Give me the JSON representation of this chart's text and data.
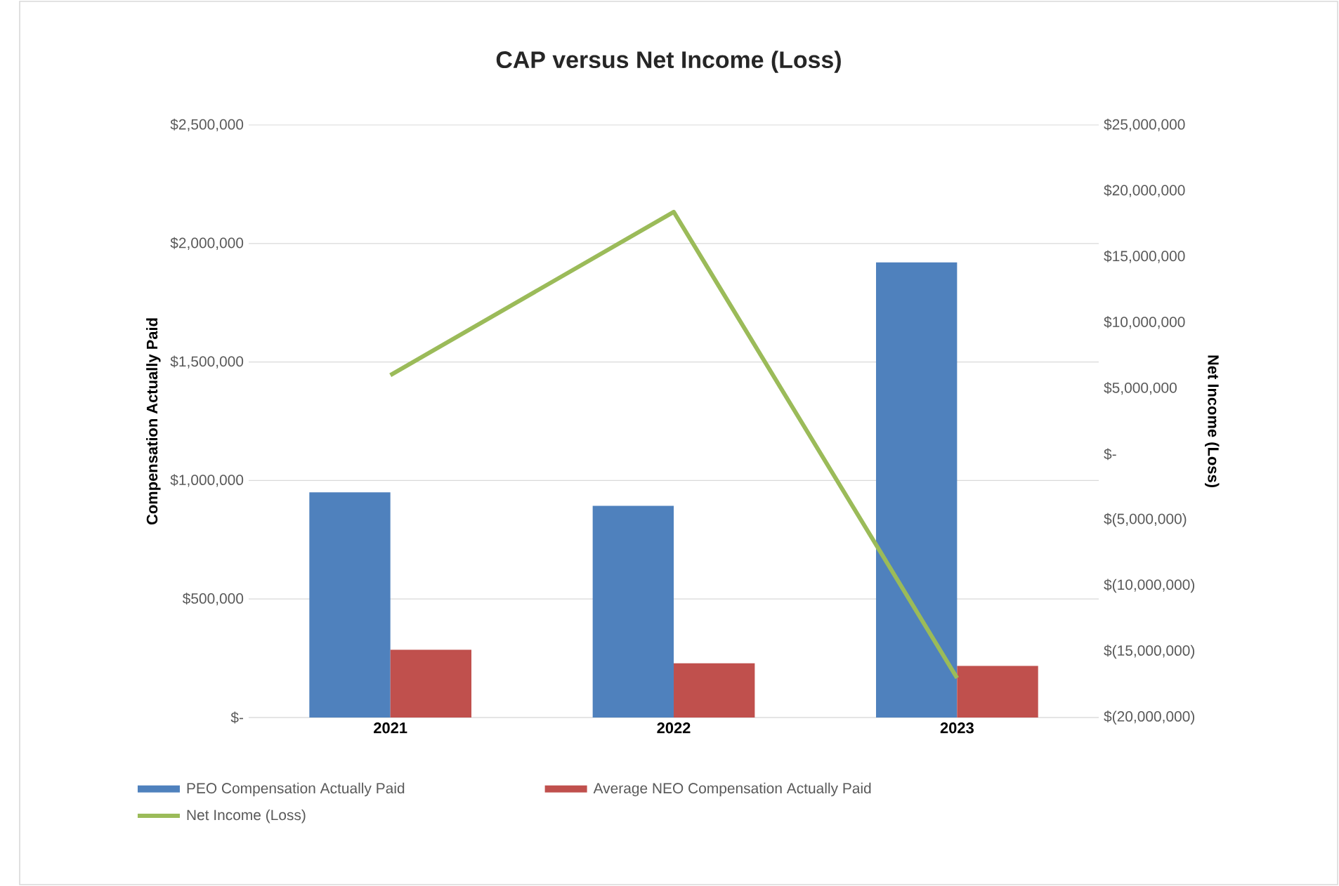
{
  "chart_data": {
    "type": "bar",
    "title": "CAP versus Net Income (Loss)",
    "ylabel": "Compensation Actually Paid",
    "y2label": "Net Income (Loss)",
    "categories": [
      "2021",
      "2022",
      "2023"
    ],
    "series": [
      {
        "name": "PEO Compensation Actually Paid",
        "color": "#4f81bd",
        "values": [
          950000,
          893000,
          1920000
        ]
      },
      {
        "name": "Average NEO Compensation Actually Paid",
        "color": "#c0504d",
        "values": [
          286000,
          229000,
          218000
        ]
      },
      {
        "name": "Net Income (Loss)",
        "type": "line",
        "axis": "y2",
        "color": "#9bbb59",
        "values": [
          6000000,
          18400000,
          -17000000
        ]
      }
    ],
    "ylim": [
      0,
      2500000
    ],
    "yticks": [
      {
        "value": 0,
        "label": "$-"
      },
      {
        "value": 500000,
        "label": "$500,000"
      },
      {
        "value": 1000000,
        "label": "$1,000,000"
      },
      {
        "value": 1500000,
        "label": "$1,500,000"
      },
      {
        "value": 2000000,
        "label": "$2,000,000"
      },
      {
        "value": 2500000,
        "label": "$2,500,000"
      }
    ],
    "y2lim": [
      -20000000,
      25000000
    ],
    "y2ticks": [
      {
        "value": -20000000,
        "label": "$(20,000,000)"
      },
      {
        "value": -15000000,
        "label": "$(15,000,000)"
      },
      {
        "value": -10000000,
        "label": "$(10,000,000)"
      },
      {
        "value": -5000000,
        "label": "$(5,000,000)"
      },
      {
        "value": 0,
        "label": "$-"
      },
      {
        "value": 5000000,
        "label": "$5,000,000"
      },
      {
        "value": 10000000,
        "label": "$10,000,000"
      },
      {
        "value": 15000000,
        "label": "$15,000,000"
      },
      {
        "value": 20000000,
        "label": "$20,000,000"
      },
      {
        "value": 25000000,
        "label": "$25,000,000"
      }
    ],
    "grid": "y",
    "legend": "bottom",
    "marker": "none",
    "line_style": "solid"
  }
}
